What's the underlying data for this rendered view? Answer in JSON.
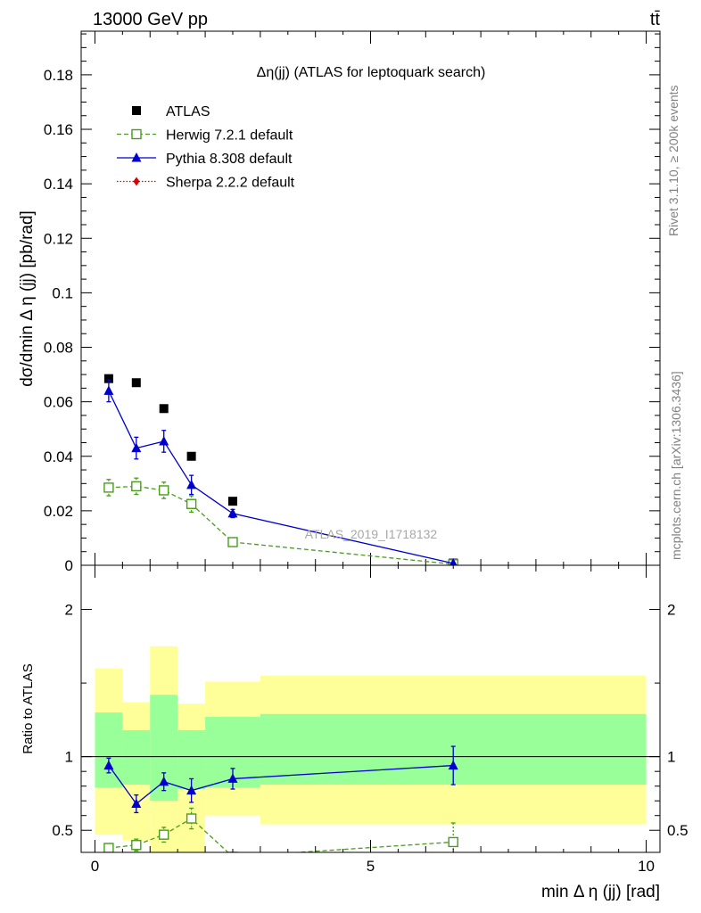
{
  "header": {
    "left": "13000 GeV pp",
    "right": "tt̄"
  },
  "side_text": {
    "rivet": "Rivet 3.1.10, ≥ 200k events",
    "mcplots": "mcplots.cern.ch [arXiv:1306.3436]"
  },
  "watermark": "ATLAS_2019_I1718132",
  "chart_data": [
    {
      "type": "scatter",
      "title": "Δη(jj) (ATLAS for leptoquark search)",
      "xlabel": "",
      "ylabel": "dσ/dmin Δ η (jj) [pb/rad]",
      "xlim": [
        -0.25,
        10.25
      ],
      "ylim": [
        0,
        0.196
      ],
      "yticks": [
        0,
        0.02,
        0.04,
        0.06,
        0.08,
        0.1,
        0.12,
        0.14,
        0.16,
        0.18
      ],
      "ytick_labels": [
        "0",
        "0.02",
        "0.04",
        "0.06",
        "0.08",
        "0.1",
        "0.12",
        "0.14",
        "0.16",
        "0.18"
      ],
      "legend_position": "top-left",
      "bins": [
        [
          0,
          0.5
        ],
        [
          0.5,
          1
        ],
        [
          1,
          1.5
        ],
        [
          1.5,
          2
        ],
        [
          2,
          3
        ],
        [
          3,
          10
        ]
      ],
      "series": [
        {
          "name": "ATLAS",
          "style": "data",
          "color": "#000000",
          "marker": "filled-square",
          "x": [
            0.25,
            0.75,
            1.25,
            1.75,
            2.5,
            6.5
          ],
          "y": [
            0.0685,
            0.067,
            0.0575,
            0.04,
            0.0235,
            0.0008
          ]
        },
        {
          "name": "Herwig 7.2.1 default",
          "style": "dashed",
          "color": "#4a9c1c",
          "marker": "open-square",
          "x": [
            0.25,
            0.75,
            1.25,
            1.75,
            2.5,
            6.5
          ],
          "y": [
            0.0285,
            0.029,
            0.0275,
            0.0225,
            0.0085,
            0.0004
          ],
          "err": [
            0.003,
            0.003,
            0.003,
            0.003,
            0.001,
            0.0001
          ]
        },
        {
          "name": "Pythia 8.308 default",
          "style": "solid",
          "color": "#0000cc",
          "marker": "filled-triangle",
          "x": [
            0.25,
            0.75,
            1.25,
            1.75,
            2.5,
            6.5
          ],
          "y": [
            0.064,
            0.043,
            0.0455,
            0.0295,
            0.019,
            0.0007
          ],
          "err": [
            0.004,
            0.004,
            0.004,
            0.0035,
            0.0015,
            0.0001
          ]
        },
        {
          "name": "Sherpa 2.2.2 default",
          "style": "dotted",
          "color": "#dd0000",
          "marker": "filled-diamond",
          "x": [],
          "y": []
        }
      ]
    },
    {
      "type": "scatter",
      "title": "",
      "xlabel": "min Δ η (jj) [rad]",
      "ylabel": "Ratio to ATLAS",
      "xlim": [
        -0.25,
        10.25
      ],
      "ylim": [
        0.35,
        2.3
      ],
      "xticks": [
        0,
        5,
        10
      ],
      "xtick_labels": [
        "0",
        "5",
        "10"
      ],
      "yticks": [
        0.5,
        1,
        2
      ],
      "ytick_labels": [
        "0.5",
        "1",
        "2"
      ],
      "bins": [
        [
          0,
          0.5
        ],
        [
          0.5,
          1
        ],
        [
          1,
          1.5
        ],
        [
          1.5,
          2
        ],
        [
          2,
          3
        ],
        [
          3,
          10
        ]
      ],
      "bands": {
        "stat": {
          "color": "#99ff99",
          "lo": [
            0.79,
            0.81,
            0.7,
            0.78,
            0.79,
            0.81
          ],
          "hi": [
            1.3,
            1.18,
            1.42,
            1.18,
            1.27,
            1.29
          ]
        },
        "total": {
          "color": "#ffff99",
          "lo": [
            0.47,
            0.43,
            0.17,
            0.3,
            0.6,
            0.54
          ],
          "hi": [
            1.6,
            1.37,
            1.75,
            1.36,
            1.51,
            1.55
          ]
        }
      },
      "series": [
        {
          "name": "Herwig 7.2.1 default",
          "style": "dashed",
          "color": "#4a9c1c",
          "marker": "open-square",
          "x": [
            0.25,
            0.75,
            1.25,
            1.75,
            2.5,
            6.5
          ],
          "y": [
            0.38,
            0.4,
            0.47,
            0.58,
            0.32,
            0.42
          ],
          "err": [
            0.03,
            0.04,
            0.05,
            0.07,
            0.03,
            0.13
          ]
        },
        {
          "name": "Pythia 8.308 default",
          "style": "solid",
          "color": "#0000cc",
          "marker": "filled-triangle",
          "x": [
            0.25,
            0.75,
            1.25,
            1.75,
            2.5,
            6.5
          ],
          "y": [
            0.94,
            0.68,
            0.83,
            0.77,
            0.85,
            0.94
          ],
          "err": [
            0.05,
            0.06,
            0.06,
            0.08,
            0.07,
            0.13
          ]
        }
      ]
    }
  ]
}
